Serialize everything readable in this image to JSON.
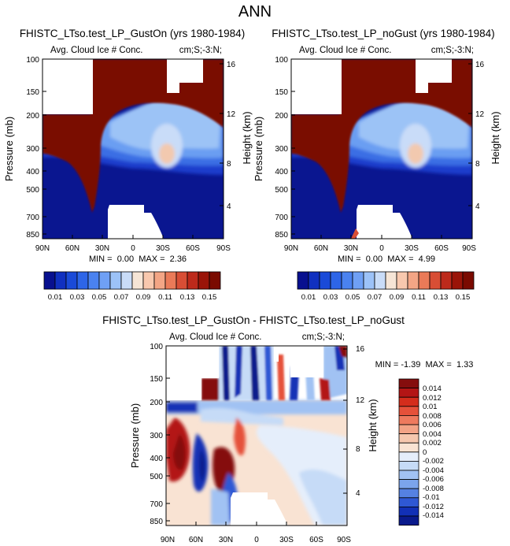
{
  "figure": {
    "title": "ANN"
  },
  "chart_data": [
    {
      "type": "heatmap",
      "title": "FHISTC_LTso.test_LP_GustOn (yrs 1980-1984)",
      "subtitle_left": "Avg. Cloud Ice # Conc.",
      "subtitle_right": "cm;S;-3:N;",
      "xlabel": "",
      "ylabel": "Pressure (mb)",
      "ylabel_right": "Height (km)",
      "x_ticks": [
        "90N",
        "60N",
        "30N",
        "0",
        "30S",
        "60S",
        "90S"
      ],
      "y_ticks": [
        "100",
        "150",
        "200",
        "300",
        "400",
        "500",
        "700",
        "850"
      ],
      "y_ticks_right": [
        "16",
        "12",
        "8",
        "4"
      ],
      "stats": "MIN =  0.00  MAX =  2.36",
      "min": 0.0,
      "max": 2.36,
      "colorbar_labels": [
        "0.01",
        "0.03",
        "0.05",
        "0.07",
        "0.09",
        "0.11",
        "0.13",
        "0.15"
      ],
      "levels": [
        0.01,
        0.02,
        0.03,
        0.04,
        0.05,
        0.06,
        0.07,
        0.08,
        0.09,
        0.1,
        0.11,
        0.12,
        0.13,
        0.14,
        0.15
      ]
    },
    {
      "type": "heatmap",
      "title": "FHISTC_LTso.test_LP_noGust (yrs 1980-1984)",
      "subtitle_left": "Avg. Cloud Ice # Conc.",
      "subtitle_right": "cm;S;-3:N;",
      "xlabel": "",
      "ylabel": "Pressure (mb)",
      "ylabel_right": "Height (km)",
      "x_ticks": [
        "90N",
        "60N",
        "30N",
        "0",
        "30S",
        "60S",
        "90S"
      ],
      "y_ticks": [
        "100",
        "150",
        "200",
        "300",
        "400",
        "500",
        "700",
        "850"
      ],
      "y_ticks_right": [
        "16",
        "12",
        "8",
        "4"
      ],
      "stats": "MIN =  0.00  MAX =  4.99",
      "min": 0.0,
      "max": 4.99,
      "colorbar_labels": [
        "0.01",
        "0.03",
        "0.05",
        "0.07",
        "0.09",
        "0.11",
        "0.13",
        "0.15"
      ],
      "levels": [
        0.01,
        0.02,
        0.03,
        0.04,
        0.05,
        0.06,
        0.07,
        0.08,
        0.09,
        0.1,
        0.11,
        0.12,
        0.13,
        0.14,
        0.15
      ]
    },
    {
      "type": "heatmap",
      "title": "FHISTC_LTso.test_LP_GustOn - FHISTC_LTso.test_LP_noGust",
      "subtitle_left": "Avg. Cloud Ice # Conc.",
      "subtitle_right": "cm;S;-3:N;",
      "xlabel": "",
      "ylabel": "Pressure (mb)",
      "ylabel_right": "Height (km)",
      "x_ticks": [
        "90N",
        "60N",
        "30N",
        "0",
        "30S",
        "60S",
        "90S"
      ],
      "y_ticks": [
        "100",
        "150",
        "200",
        "300",
        "400",
        "500",
        "700",
        "850"
      ],
      "y_ticks_right": [
        "16",
        "12",
        "8",
        "4"
      ],
      "stats": "MIN = -1.39  MAX =  1.33",
      "min": -1.39,
      "max": 1.33,
      "colorbar_labels": [
        "0.014",
        "0.012",
        "0.01",
        "0.008",
        "0.006",
        "0.004",
        "0.002",
        "0",
        "-0.002",
        "-0.004",
        "-0.006",
        "-0.008",
        "-0.01",
        "-0.012",
        "-0.014"
      ],
      "levels": [
        0.014,
        0.012,
        0.01,
        0.008,
        0.006,
        0.004,
        0.002,
        0,
        -0.002,
        -0.004,
        -0.006,
        -0.008,
        -0.01,
        -0.012,
        -0.014
      ]
    }
  ],
  "colors": {
    "abs_scale": [
      "#08108f",
      "#1030c0",
      "#1a4ad8",
      "#2d65e8",
      "#4a82f0",
      "#6fa0f5",
      "#9cc2f8",
      "#c9dcf8",
      "#f6e5d6",
      "#f8c8ae",
      "#f3a585",
      "#ea7a58",
      "#d84e35",
      "#bd2a1b",
      "#9a1408",
      "#7a0a00"
    ],
    "diff_scale": [
      "#850d0d",
      "#b31515",
      "#d42d1c",
      "#e5513a",
      "#ee7a5e",
      "#f3a386",
      "#f6c7ae",
      "#f9e3d3",
      "#e5eefb",
      "#c6dbf7",
      "#a1c2f3",
      "#7ba4ec",
      "#5581e2",
      "#2f58d4",
      "#1230b6",
      "#0a1a8c"
    ],
    "missing": "#ffffff"
  }
}
